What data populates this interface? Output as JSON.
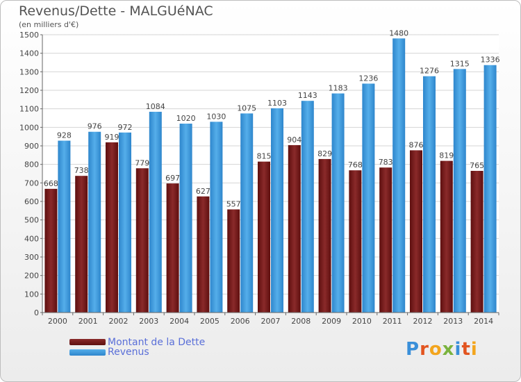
{
  "title": "Revenus/Dette - MALGUéNAC",
  "subtitle": "(en milliers d'€)",
  "logo": [
    "P",
    "r",
    "o",
    "x",
    "i",
    "t",
    "i"
  ],
  "logo_colors": [
    "#3a8fd9",
    "#e2541f",
    "#f3a51d",
    "#7ab33e",
    "#3a8fd9",
    "#e2541f",
    "#f3a51d"
  ],
  "colors": {
    "dette": "#7a1f1f",
    "revenus": "#3d99dd"
  },
  "chart_data": {
    "type": "bar",
    "categories": [
      "2000",
      "2001",
      "2002",
      "2003",
      "2004",
      "2005",
      "2006",
      "2007",
      "2008",
      "2009",
      "2010",
      "2011",
      "2012",
      "2013",
      "2014"
    ],
    "series": [
      {
        "name": "Montant de la Dette",
        "values": [
          668,
          738,
          919,
          779,
          697,
          627,
          557,
          815,
          904,
          829,
          768,
          783,
          876,
          819,
          765
        ]
      },
      {
        "name": "Revenus",
        "values": [
          928,
          976,
          972,
          1084,
          1020,
          1030,
          1075,
          1103,
          1143,
          1183,
          1236,
          1480,
          1276,
          1315,
          1336
        ]
      }
    ],
    "ylim": [
      0,
      1500
    ],
    "yticks": [
      0,
      100,
      200,
      300,
      400,
      500,
      600,
      700,
      800,
      900,
      1000,
      1100,
      1200,
      1300,
      1400,
      1500
    ],
    "grid": true,
    "legend": "bottom-left"
  }
}
